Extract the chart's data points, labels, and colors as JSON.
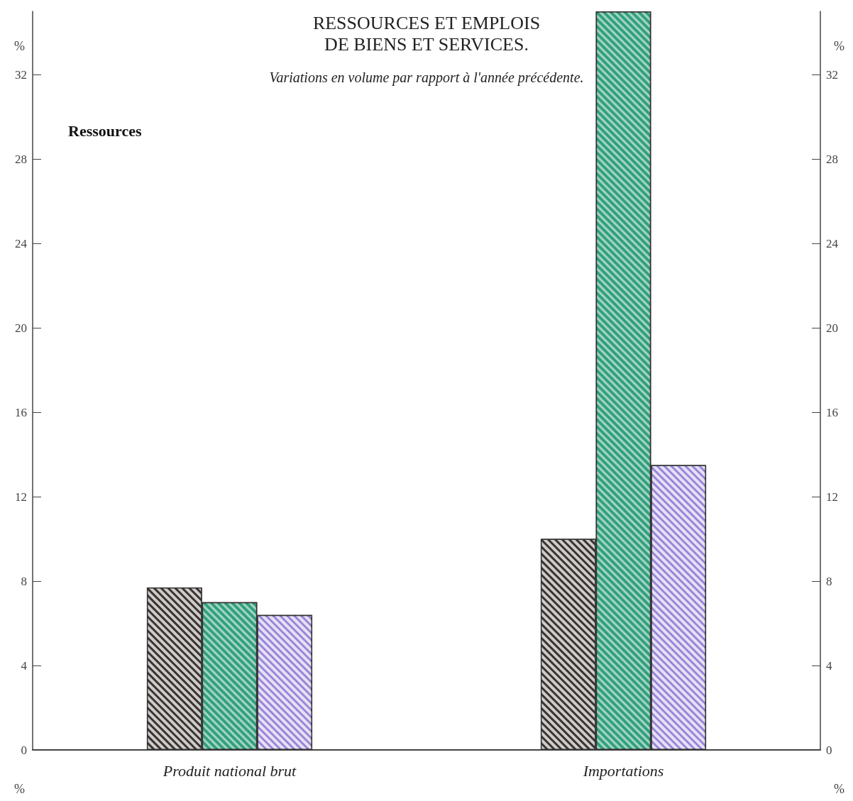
{
  "chart_data": {
    "type": "bar",
    "title": "RESSOURCES ET EMPLOIS\nDE BIENS ET SERVICES.",
    "subtitle": "Variations en volume par rapport à l'année précédente.",
    "categories": [
      "Produit national brut",
      "Importations"
    ],
    "series": [
      {
        "color": "#3a3330",
        "values": [
          7.7,
          10.0
        ]
      },
      {
        "color": "#2e9e7a",
        "values": [
          7.0,
          35.0
        ]
      },
      {
        "color": "#9a86d8",
        "values": [
          6.4,
          13.5
        ]
      }
    ],
    "ylim": [
      0,
      35
    ],
    "yticks": [
      0,
      4,
      8,
      12,
      16,
      20,
      24,
      28,
      32
    ],
    "y2lim": [
      0,
      35
    ],
    "y2ticks": [
      0,
      4,
      8,
      12,
      16,
      20,
      24,
      28,
      32
    ],
    "annotations": [
      "Ressources",
      "%",
      "%",
      "%",
      "%"
    ],
    "grid": false
  }
}
